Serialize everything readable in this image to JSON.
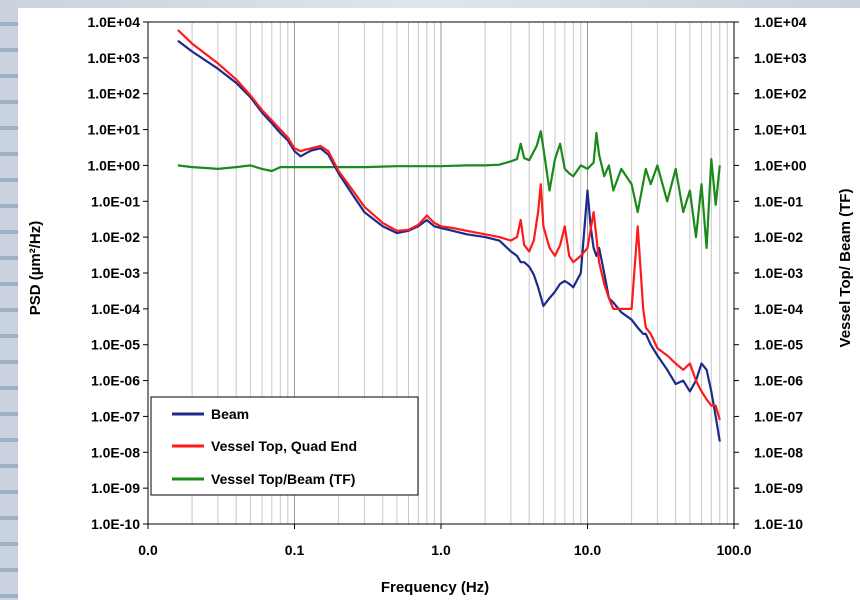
{
  "chart_data": {
    "type": "line",
    "xlabel": "Frequency (Hz)",
    "ylabel_left": "PSD (µm²/Hz)",
    "ylabel_right": "Vessel Top/ Beam (TF)",
    "x_scale": "log",
    "y_scale": "log",
    "xlim": [
      0.01,
      100
    ],
    "ylim": [
      1e-10,
      10000.0
    ],
    "x_ticks": [
      0.01,
      0.1,
      1,
      10,
      100
    ],
    "x_tick_labels": [
      "0.0",
      "0.1",
      "1.0",
      "10.0",
      "100.0"
    ],
    "y_tick_labels": [
      "1.0E-10",
      "1.0E-09",
      "1.0E-08",
      "1.0E-07",
      "1.0E-06",
      "1.0E-05",
      "1.0E-04",
      "1.0E-03",
      "1.0E-02",
      "1.0E-01",
      "1.0E+00",
      "1.0E+01",
      "1.0E+02",
      "1.0E+03",
      "1.0E+04"
    ],
    "grid": true,
    "legend_position": "bottom-left",
    "series": [
      {
        "name": "Beam",
        "color": "#1c2a8c",
        "x": [
          0.016,
          0.02,
          0.03,
          0.04,
          0.05,
          0.06,
          0.07,
          0.08,
          0.09,
          0.1,
          0.11,
          0.12,
          0.13,
          0.15,
          0.17,
          0.2,
          0.25,
          0.3,
          0.4,
          0.5,
          0.6,
          0.7,
          0.8,
          0.9,
          1.0,
          1.2,
          1.5,
          2.0,
          2.5,
          3.0,
          3.3,
          3.5,
          3.7,
          4.0,
          4.3,
          4.6,
          5.0,
          5.5,
          6.0,
          6.5,
          7.0,
          7.5,
          8.0,
          9.0,
          10.0,
          10.5,
          11.0,
          11.5,
          12.0,
          13.0,
          14.0,
          15.0,
          17.0,
          20.0,
          22.0,
          24.0,
          25.0,
          27.0,
          30.0,
          35.0,
          40.0,
          45.0,
          50.0,
          55.0,
          60.0,
          65.0,
          70.0,
          75.0,
          80.0
        ],
        "values": [
          3000,
          1500,
          500,
          200,
          80,
          30,
          15,
          8,
          5,
          2.5,
          1.8,
          2.2,
          2.6,
          3.0,
          2.0,
          0.6,
          0.15,
          0.05,
          0.02,
          0.013,
          0.015,
          0.02,
          0.03,
          0.02,
          0.018,
          0.015,
          0.012,
          0.01,
          0.008,
          0.004,
          0.003,
          0.002,
          0.002,
          0.0015,
          0.0009,
          0.0004,
          0.00012,
          0.0002,
          0.0003,
          0.0005,
          0.0006,
          0.0005,
          0.0004,
          0.001,
          0.2,
          0.02,
          0.005,
          0.003,
          0.005,
          0.001,
          0.0002,
          0.00015,
          8e-05,
          5e-05,
          3e-05,
          2e-05,
          2e-05,
          1e-05,
          5e-06,
          2e-06,
          8e-07,
          1e-06,
          5e-07,
          1e-06,
          3e-06,
          2e-06,
          5e-07,
          1e-07,
          2e-08
        ]
      },
      {
        "name": "Vessel Top, Quad End",
        "color": "#ff1a1a",
        "x": [
          0.016,
          0.02,
          0.03,
          0.04,
          0.05,
          0.06,
          0.07,
          0.08,
          0.09,
          0.1,
          0.11,
          0.12,
          0.13,
          0.15,
          0.17,
          0.2,
          0.25,
          0.3,
          0.4,
          0.5,
          0.6,
          0.7,
          0.8,
          0.9,
          1.0,
          1.2,
          1.5,
          2.0,
          2.5,
          3.0,
          3.3,
          3.5,
          3.7,
          4.0,
          4.3,
          4.6,
          4.8,
          5.0,
          5.5,
          6.0,
          6.5,
          7.0,
          7.5,
          8.0,
          9.0,
          10.0,
          11.0,
          11.5,
          12.0,
          13.0,
          14.0,
          15.0,
          17.0,
          20.0,
          22.0,
          24.0,
          25.0,
          27.0,
          30.0,
          35.0,
          40.0,
          45.0,
          50.0,
          55.0,
          60.0,
          65.0,
          70.0,
          75.0,
          80.0
        ],
        "values": [
          6000,
          2500,
          700,
          250,
          90,
          35,
          18,
          10,
          6,
          3,
          2.5,
          2.8,
          3.0,
          3.5,
          2.5,
          0.7,
          0.2,
          0.07,
          0.025,
          0.015,
          0.016,
          0.022,
          0.04,
          0.025,
          0.02,
          0.018,
          0.015,
          0.012,
          0.01,
          0.008,
          0.01,
          0.03,
          0.006,
          0.004,
          0.008,
          0.05,
          0.3,
          0.02,
          0.005,
          0.003,
          0.006,
          0.02,
          0.003,
          0.002,
          0.003,
          0.005,
          0.05,
          0.01,
          0.002,
          0.0005,
          0.0002,
          0.0001,
          0.0001,
          0.0001,
          0.02,
          0.0001,
          3e-05,
          2e-05,
          8e-06,
          5e-06,
          3e-06,
          2e-06,
          3e-06,
          1e-06,
          5e-07,
          3e-07,
          2e-07,
          2e-07,
          8e-08
        ]
      },
      {
        "name": "Vessel Top/Beam (TF)",
        "color": "#1a8a1a",
        "x": [
          0.016,
          0.02,
          0.025,
          0.03,
          0.04,
          0.05,
          0.06,
          0.07,
          0.08,
          0.1,
          0.15,
          0.2,
          0.3,
          0.5,
          0.7,
          1.0,
          1.5,
          2.0,
          2.5,
          3.0,
          3.3,
          3.5,
          3.7,
          4.0,
          4.5,
          4.8,
          5.0,
          5.5,
          6.0,
          6.5,
          7.0,
          7.5,
          8.0,
          9.0,
          10.0,
          11.0,
          11.5,
          12.0,
          13.0,
          14.0,
          15.0,
          17.0,
          20.0,
          22.0,
          25.0,
          27.0,
          30.0,
          35.0,
          40.0,
          45.0,
          50.0,
          55.0,
          60.0,
          65.0,
          70.0,
          75.0,
          80.0
        ],
        "values": [
          1.0,
          0.9,
          0.85,
          0.8,
          0.9,
          1.0,
          0.8,
          0.7,
          0.9,
          0.9,
          0.9,
          0.9,
          0.9,
          0.95,
          0.95,
          0.95,
          1.0,
          1.0,
          1.05,
          1.3,
          1.5,
          4.0,
          1.6,
          1.4,
          3.5,
          9.0,
          3.0,
          0.2,
          1.5,
          4.0,
          0.8,
          0.6,
          0.5,
          1.0,
          0.8,
          1.2,
          8.0,
          2.0,
          0.5,
          1.0,
          0.2,
          0.8,
          0.3,
          0.05,
          0.8,
          0.3,
          1.0,
          0.1,
          0.8,
          0.05,
          0.2,
          0.01,
          0.3,
          0.005,
          1.5,
          0.08,
          1.0
        ]
      }
    ]
  }
}
